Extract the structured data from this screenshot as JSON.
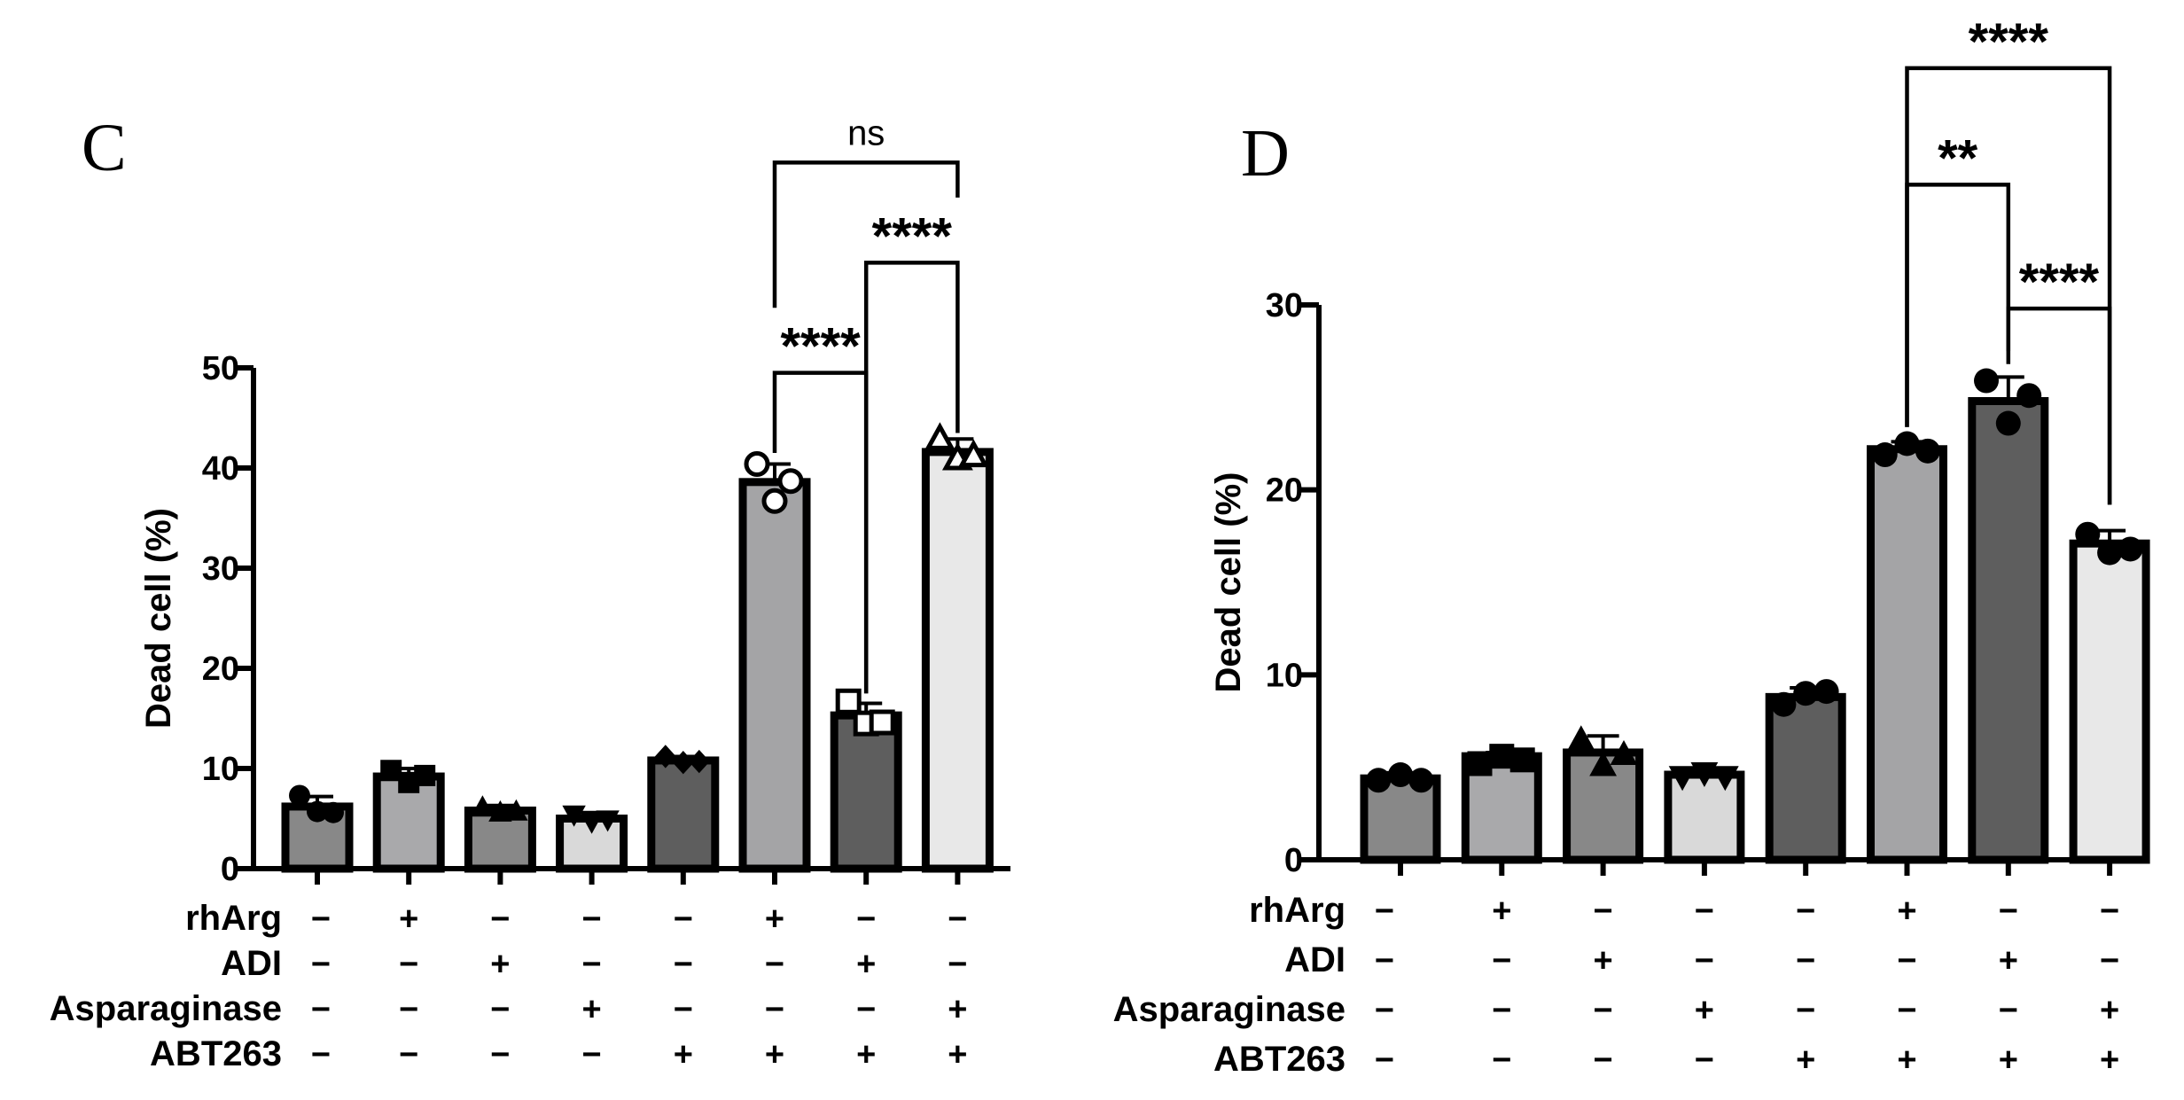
{
  "chart_data": [
    {
      "panel": "C",
      "type": "bar",
      "ylabel": "Dead cell (%)",
      "ylim": [
        0,
        50
      ],
      "yticks": [
        0,
        10,
        20,
        30,
        40,
        50
      ],
      "grid": false,
      "legend": "none",
      "values": [
        6.2,
        9.2,
        5.8,
        5.0,
        10.8,
        38.6,
        15.3,
        41.6
      ],
      "errors": [
        1.0,
        0.8,
        0.5,
        0.6,
        0.4,
        1.8,
        1.2,
        1.3
      ],
      "points": [
        [
          7.3,
          5.7,
          5.6
        ],
        [
          9.8,
          8.6,
          9.3
        ],
        [
          6.1,
          5.6,
          5.7
        ],
        [
          5.4,
          4.7,
          4.9
        ],
        [
          11.2,
          10.6,
          10.7
        ],
        [
          40.4,
          36.7,
          38.7
        ],
        [
          16.7,
          14.5,
          14.6
        ],
        [
          42.9,
          40.9,
          41.2
        ]
      ],
      "marker": [
        "circle",
        "square",
        "triangle",
        "triangle-down",
        "diamond",
        "circle-open",
        "square-open",
        "triangle-open"
      ],
      "bar_colors": [
        "#888888",
        "#a9a9ab",
        "#888888",
        "#d9d9d9",
        "#5e5e5e",
        "#a4a4a6",
        "#5e5e5e",
        "#e8e8e8"
      ],
      "conditions": {
        "labels": [
          "rhArg",
          "ADI",
          "Asparaginase",
          "ABT263"
        ],
        "rows": [
          [
            "−",
            "+",
            "−",
            "−",
            "−",
            "+",
            "−",
            "−"
          ],
          [
            "−",
            "−",
            "+",
            "−",
            "−",
            "−",
            "+",
            "−"
          ],
          [
            "−",
            "−",
            "−",
            "+",
            "−",
            "−",
            "−",
            "+"
          ],
          [
            "−",
            "−",
            "−",
            "−",
            "+",
            "+",
            "+",
            "+"
          ]
        ]
      },
      "comparisons": [
        {
          "from": 5,
          "to": 6,
          "label": "****",
          "y": 49.5,
          "left_end": 41.5,
          "right_end": 17.5
        },
        {
          "from": 6,
          "to": 7,
          "label": "****",
          "y": 60.5,
          "left_end": 17.5,
          "right_end": 43.5
        },
        {
          "from": 5,
          "to": 7,
          "label": "ns",
          "y": 70.5,
          "left_end": 56,
          "right_end": 67
        }
      ]
    },
    {
      "panel": "D",
      "type": "bar",
      "ylabel": "Dead cell (%)",
      "ylim": [
        0,
        30
      ],
      "yticks": [
        0,
        10,
        20,
        30
      ],
      "grid": false,
      "legend": "none",
      "values": [
        4.4,
        5.6,
        5.8,
        4.6,
        8.8,
        22.2,
        24.8,
        17.1
      ],
      "errors": [
        0.3,
        0.2,
        0.9,
        0.3,
        0.5,
        0.4,
        1.3,
        0.7
      ],
      "points": [
        [
          4.3,
          4.6,
          4.3
        ],
        [
          5.2,
          5.6,
          5.4
        ],
        [
          6.5,
          5.1,
          5.7
        ],
        [
          4.5,
          4.7,
          4.5
        ],
        [
          8.4,
          9.0,
          9.1
        ],
        [
          21.9,
          22.5,
          22.1
        ],
        [
          25.9,
          23.6,
          25.1
        ],
        [
          17.6,
          16.6,
          16.8
        ]
      ],
      "marker": [
        "circle",
        "square",
        "triangle",
        "triangle-down",
        "circle",
        "circle",
        "circle",
        "circle"
      ],
      "bar_colors": [
        "#888888",
        "#a9a9ab",
        "#888888",
        "#d9d9d9",
        "#5e5e5e",
        "#a4a4a6",
        "#5e5e5e",
        "#e8e8e8"
      ],
      "conditions": {
        "labels": [
          "rhArg",
          "ADI",
          "Asparaginase",
          "ABT263"
        ],
        "rows": [
          [
            "−",
            "+",
            "−",
            "−",
            "−",
            "+",
            "−",
            "−"
          ],
          [
            "−",
            "−",
            "+",
            "−",
            "−",
            "−",
            "+",
            "−"
          ],
          [
            "−",
            "−",
            "−",
            "+",
            "−",
            "−",
            "−",
            "+"
          ],
          [
            "−",
            "−",
            "−",
            "−",
            "+",
            "+",
            "+",
            "+"
          ]
        ]
      },
      "comparisons": [
        {
          "from": 6,
          "to": 7,
          "label": "****",
          "y": 29.8,
          "left_end": 27.5,
          "right_end": 19.2
        },
        {
          "from": 5,
          "to": 6,
          "label": "**",
          "y": 36.5,
          "left_end": 23.4,
          "right_end": 26.8
        },
        {
          "from": 5,
          "to": 7,
          "label": "****",
          "y": 42.8,
          "left_end": 23.4,
          "right_end": 19.2
        }
      ]
    }
  ]
}
